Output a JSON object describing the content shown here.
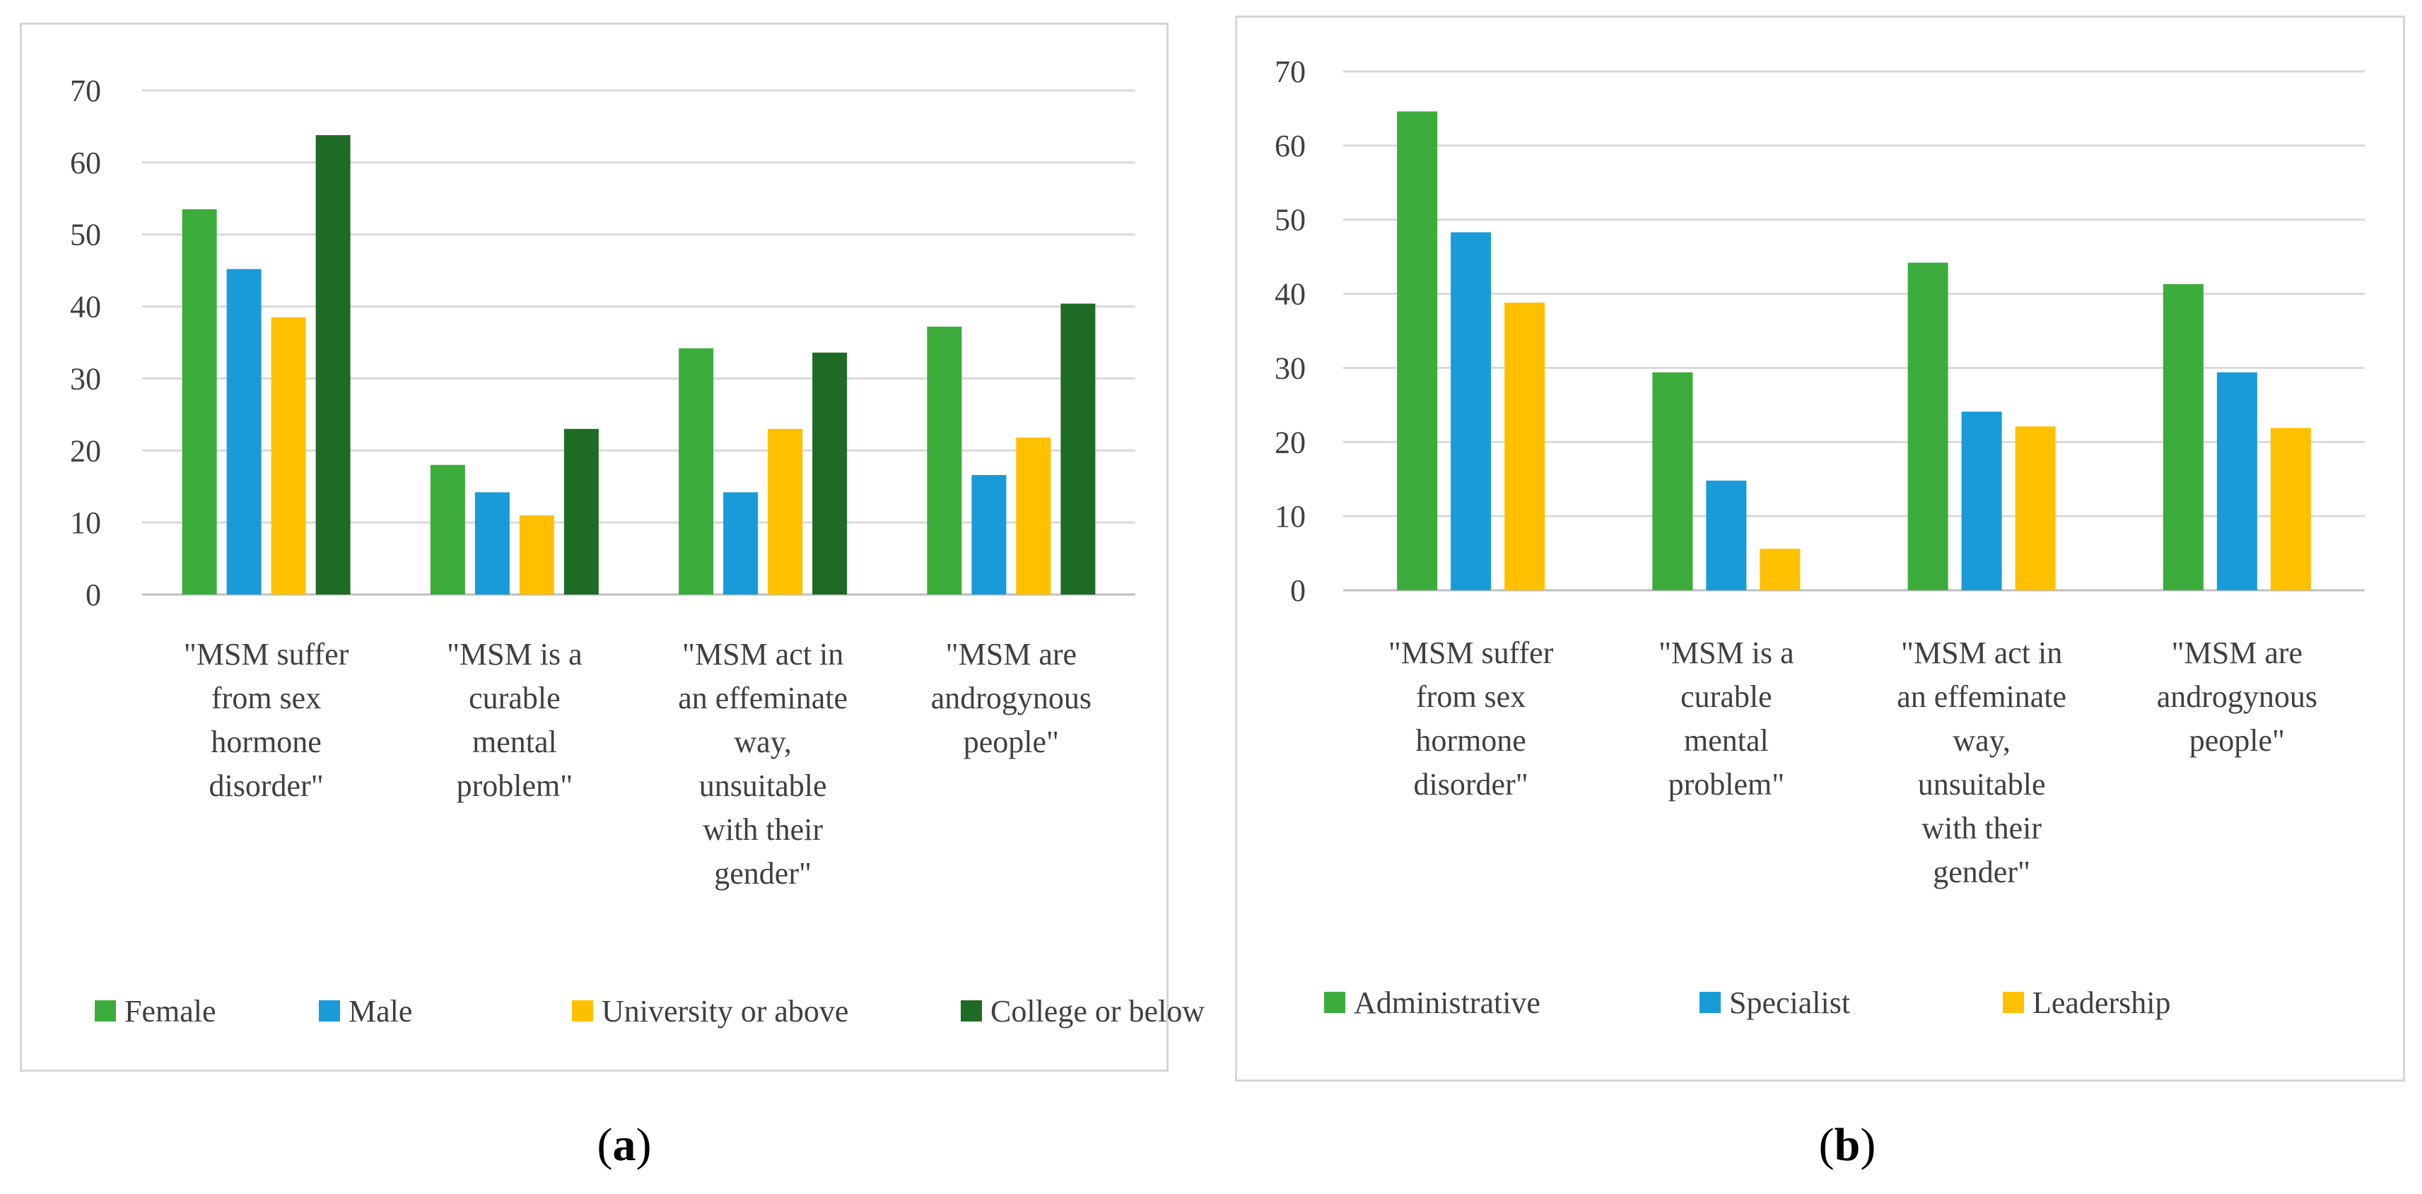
{
  "chart_data": [
    {
      "id": "a",
      "type": "bar",
      "panel_label_open": "(",
      "panel_label_letter": "a",
      "panel_label_close": ")",
      "categories": [
        [
          "\"MSM suffer",
          "from sex",
          "hormone",
          "disorder\""
        ],
        [
          "\"MSM is a",
          "curable",
          "mental",
          "problem\""
        ],
        [
          "\"MSM act in",
          "an effeminate",
          "way,",
          "unsuitable",
          "with their",
          "gender\""
        ],
        [
          "\"MSM are",
          "androgynous",
          "people\""
        ]
      ],
      "series": [
        {
          "name": "Female",
          "color": "#3cac3c",
          "values": [
            53.5,
            18,
            34.2,
            37.2
          ]
        },
        {
          "name": "Male",
          "color": "#199bd8",
          "values": [
            45.2,
            14.2,
            14.2,
            16.6
          ]
        },
        {
          "name": "University or above",
          "color": "#ffc000",
          "values": [
            38.5,
            11,
            23,
            21.8
          ]
        },
        {
          "name": "College or below",
          "color": "#1e6b26",
          "values": [
            63.8,
            23,
            33.6,
            40.4
          ]
        }
      ],
      "ylim": [
        0,
        70
      ],
      "yticks": [
        "0",
        "10",
        "20",
        "30",
        "40",
        "50",
        "60",
        "70"
      ],
      "grid": true,
      "legend": "bottom"
    },
    {
      "id": "b",
      "type": "bar",
      "panel_label_open": "(",
      "panel_label_letter": "b",
      "panel_label_close": ")",
      "categories": [
        [
          "\"MSM suffer",
          "from sex",
          "hormone",
          "disorder\""
        ],
        [
          "\"MSM is a",
          "curable",
          "mental",
          "problem\""
        ],
        [
          "\"MSM act in",
          "an effeminate",
          "way,",
          "unsuitable",
          "with their",
          "gender\""
        ],
        [
          "\"MSM are",
          "androgynous",
          "people\""
        ]
      ],
      "series": [
        {
          "name": "Administrative",
          "color": "#3cac3c",
          "values": [
            64.6,
            29.4,
            44.2,
            41.3
          ]
        },
        {
          "name": "Specialist",
          "color": "#199bd8",
          "values": [
            48.3,
            14.8,
            24.1,
            29.4
          ]
        },
        {
          "name": "Leadership",
          "color": "#ffc000",
          "values": [
            38.8,
            5.6,
            22.1,
            21.9
          ]
        }
      ],
      "ylim": [
        0,
        70
      ],
      "yticks": [
        "0",
        "10",
        "20",
        "30",
        "40",
        "50",
        "60",
        "70"
      ],
      "grid": true,
      "legend": "bottom"
    }
  ]
}
